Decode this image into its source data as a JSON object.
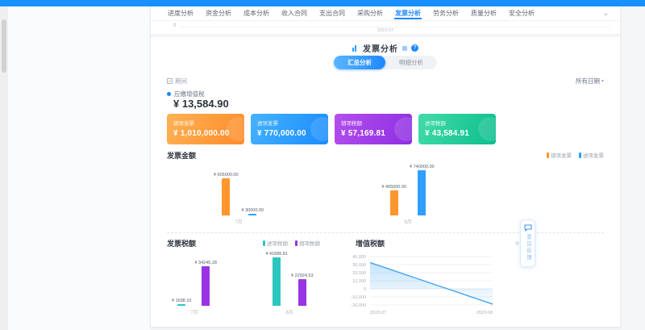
{
  "nav": {
    "tabs": [
      {
        "label": "进度分析",
        "active": false
      },
      {
        "label": "资金分析",
        "active": false
      },
      {
        "label": "成本分析",
        "active": false
      },
      {
        "label": "收入合同",
        "active": false
      },
      {
        "label": "支出合同",
        "active": false
      },
      {
        "label": "采购分析",
        "active": false
      },
      {
        "label": "发票分析",
        "active": true
      },
      {
        "label": "劳务分析",
        "active": false
      },
      {
        "label": "质量分析",
        "active": false
      },
      {
        "label": "安全分析",
        "active": false
      }
    ],
    "chevron": "⌄"
  },
  "top_remnant": {
    "zero_label": "0",
    "x_tick": "2023-07"
  },
  "header": {
    "title": "发票分析",
    "help_label": "?"
  },
  "view_toggle": {
    "options": [
      "汇总分析",
      "明细分析"
    ],
    "active_index": 0
  },
  "filter_bar": {
    "left_label": "期间",
    "right_label": "所有日期",
    "caret": "▾"
  },
  "summary": {
    "vat_due_label": "应缴增值税",
    "vat_due_value": "¥ 13,584.90"
  },
  "stat_cards": [
    {
      "label": "销项发票",
      "value": "¥ 1,010,000.00",
      "color_from": "#ffb254",
      "color_to": "#ff8b2a"
    },
    {
      "label": "进项发票",
      "value": "¥ 770,000.00",
      "color_from": "#45b2ff",
      "color_to": "#1a8cff"
    },
    {
      "label": "销项税额",
      "value": "¥ 57,169.81",
      "color_from": "#b44fee",
      "color_to": "#8d2ee2"
    },
    {
      "label": "进项税额",
      "value": "¥ 43,584.91",
      "color_from": "#43dca8",
      "color_to": "#0cbd8d"
    }
  ],
  "chart_data": [
    {
      "type": "bar",
      "title": "发票金额",
      "categories": [
        "7月",
        "8月"
      ],
      "series": [
        {
          "name": "销项发票",
          "color": "#ff962e",
          "values": [
            605000,
            405000
          ],
          "labels": [
            "¥ 605000.00",
            "¥ 405000.00"
          ]
        },
        {
          "name": "进项发票",
          "color": "#2f9ffe",
          "values": [
            30000,
            740000
          ],
          "labels": [
            "¥ 30000.00",
            "¥ 740000.00"
          ]
        }
      ],
      "ylim": [
        0,
        740000
      ],
      "legend_position": "top-right",
      "grid": false
    },
    {
      "type": "bar",
      "title": "发票税额",
      "categories": [
        "7月",
        "8月"
      ],
      "series": [
        {
          "name": "进项税额",
          "color": "#2cc6c0",
          "values": [
            1698.1,
            41886.81
          ],
          "labels": [
            "¥ 1698.10",
            "¥ 41886.81"
          ]
        },
        {
          "name": "销项税额",
          "color": "#9a33e5",
          "values": [
            34245.28,
            22924.53
          ],
          "labels": [
            "¥ 34245.28",
            "¥ 22924.53"
          ]
        }
      ],
      "ylim": [
        0,
        41886.81
      ],
      "legend_position": "top-right",
      "grid": false
    },
    {
      "type": "line",
      "title": "增值税额",
      "x": [
        "2023-07",
        "2023-08"
      ],
      "values": [
        32547.18,
        -18962.28
      ],
      "yticks": [
        40000,
        30000,
        20000,
        10000,
        0,
        -10000,
        -20000
      ],
      "ylim": [
        -20000,
        40000
      ],
      "color": "#45a5f2",
      "area": true,
      "grid": true
    }
  ],
  "feedback_widget": {
    "label": "意见反馈"
  }
}
